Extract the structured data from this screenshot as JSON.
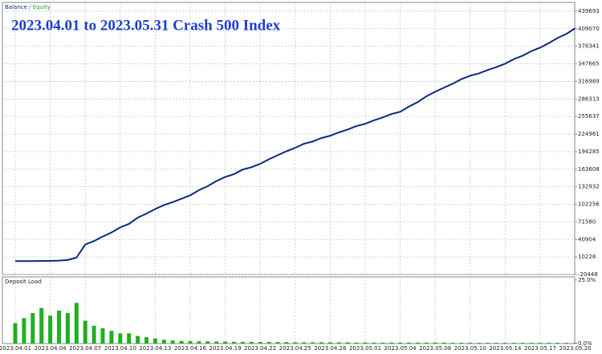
{
  "chart_data": {
    "type": "line",
    "title": "2023.04.01 to 2023.05.31 Crash 500 Index",
    "legend_separator": " / ",
    "categories": [
      "2023.04.01",
      null,
      null,
      null,
      "2023.04.04",
      null,
      null,
      null,
      "2023.04.07",
      null,
      null,
      null,
      "2023.04.10",
      null,
      null,
      null,
      "2023.04.13",
      null,
      null,
      null,
      "2023.04.16",
      null,
      null,
      null,
      "2023.04.19",
      null,
      null,
      null,
      "2023.04.22",
      null,
      null,
      null,
      "2023.04.25",
      null,
      null,
      null,
      "2023.04.28",
      null,
      null,
      null,
      "2023.05.01",
      null,
      null,
      null,
      "2023.05.04",
      null,
      null,
      null,
      "2023.05.08",
      null,
      null,
      null,
      "2023.05.10",
      null,
      null,
      null,
      "2023.05.14",
      null,
      null,
      null,
      "2023.05.17",
      null,
      null,
      null,
      "2023.05.20"
    ],
    "series": [
      {
        "name": "Equity",
        "color": "#1fa01f",
        "values": [
          3000,
          3000,
          3100,
          3200,
          3400,
          3900,
          5000,
          9000,
          32000,
          38000,
          46000,
          53000,
          62000,
          68000,
          79000,
          86000,
          94000,
          101000,
          106000,
          112000,
          118000,
          127000,
          134000,
          143000,
          150000,
          155000,
          163000,
          167000,
          173000,
          181000,
          188000,
          195000,
          201000,
          208000,
          212000,
          218000,
          222000,
          228000,
          233000,
          239000,
          243000,
          249000,
          254000,
          260000,
          264000,
          273000,
          281000,
          291000,
          299000,
          306000,
          313000,
          321000,
          327000,
          331000,
          337000,
          342000,
          348000,
          356000,
          362000,
          370000,
          376000,
          384000,
          393000,
          400000,
          410000
        ]
      },
      {
        "name": "Balance",
        "color": "#0d2a80",
        "values": [
          3000,
          3000,
          3100,
          3200,
          3400,
          3900,
          5000,
          9000,
          32000,
          38000,
          46000,
          53000,
          62000,
          68000,
          79000,
          86000,
          94000,
          101000,
          106000,
          112000,
          118000,
          127000,
          134000,
          143000,
          150000,
          155000,
          163000,
          167000,
          173000,
          181000,
          188000,
          195000,
          201000,
          208000,
          212000,
          218000,
          222000,
          228000,
          233000,
          239000,
          243000,
          249000,
          254000,
          260000,
          264000,
          273000,
          281000,
          291000,
          299000,
          306000,
          313000,
          321000,
          327000,
          331000,
          337000,
          342000,
          348000,
          356000,
          362000,
          370000,
          376000,
          384000,
          393000,
          400000,
          410000
        ]
      }
    ],
    "ylim": [
      -20448,
      455031
    ],
    "yticks": [
      439693,
      409070,
      378341,
      347665,
      316989,
      286313,
      255637,
      224961,
      194285,
      163608,
      132932,
      102256,
      71580,
      40904,
      10228,
      -20448
    ],
    "grid": true,
    "deposit_load": {
      "type": "bar",
      "title": "Deposit Load",
      "color": "#1fb01f",
      "values": [
        8,
        10,
        12,
        14,
        11,
        13,
        12,
        16,
        9,
        7,
        6,
        5,
        4,
        4,
        3,
        2.5,
        2,
        1.5,
        1.2,
        1,
        1,
        0.9,
        0.9,
        0.8,
        0.8,
        0.7,
        0.7,
        0.7,
        0.6,
        0.6,
        0.6,
        0.6,
        0.5,
        0.5,
        0.5,
        0.5,
        0.5,
        0.5,
        0.5,
        0.4,
        0.4,
        0.4,
        0.4,
        0.4,
        0.4,
        0.4,
        0.4,
        0.4,
        0.4,
        0.4,
        0.3,
        0.3,
        0.3,
        0.3,
        0.3,
        0.3,
        0.3,
        0.3,
        0.3,
        0.3,
        0.3,
        0.3,
        0.3,
        0.3,
        0.3
      ],
      "ylim": [
        0,
        26.2
      ],
      "yticks": [
        {
          "value": 25,
          "label": "25.0%"
        },
        {
          "value": 0,
          "label": "0.0%"
        }
      ]
    }
  }
}
